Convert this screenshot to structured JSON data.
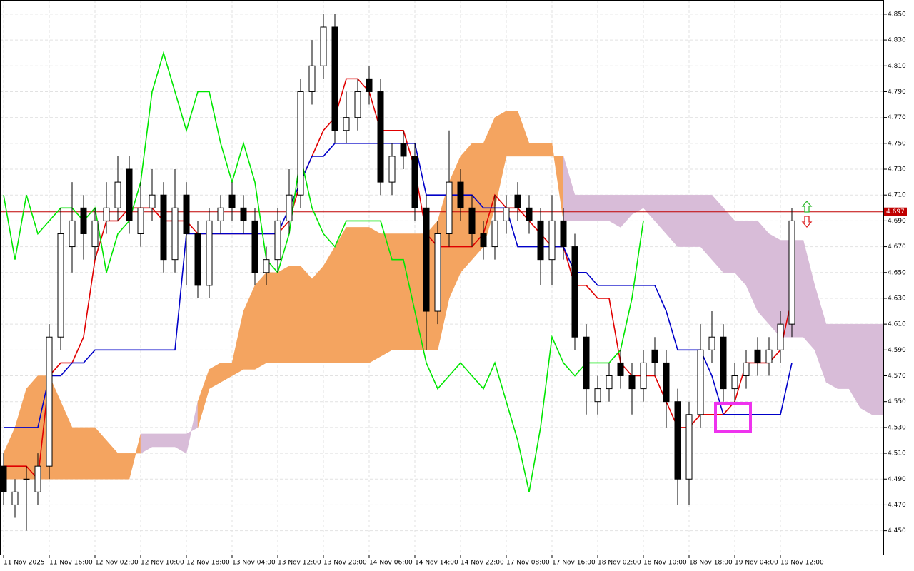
{
  "chart_data": {
    "type": "candlestick",
    "ylim": [
      4.431,
      4.861
    ],
    "yticks": [
      {
        "value": 4.45,
        "label": "4.450"
      },
      {
        "value": 4.47,
        "label": "4.470"
      },
      {
        "value": 4.49,
        "label": "4.490"
      },
      {
        "value": 4.51,
        "label": "4.510"
      },
      {
        "value": 4.53,
        "label": "4.530"
      },
      {
        "value": 4.55,
        "label": "4.550"
      },
      {
        "value": 4.57,
        "label": "4.570"
      },
      {
        "value": 4.59,
        "label": "4.590"
      },
      {
        "value": 4.61,
        "label": "4.610"
      },
      {
        "value": 4.63,
        "label": "4.630"
      },
      {
        "value": 4.65,
        "label": "4.650"
      },
      {
        "value": 4.67,
        "label": "4.670"
      },
      {
        "value": 4.69,
        "label": "4.690"
      },
      {
        "value": 4.71,
        "label": "4.710"
      },
      {
        "value": 4.73,
        "label": "4.730"
      },
      {
        "value": 4.75,
        "label": "4.750"
      },
      {
        "value": 4.77,
        "label": "4.770"
      },
      {
        "value": 4.79,
        "label": "4.790"
      },
      {
        "value": 4.81,
        "label": "4.810"
      },
      {
        "value": 4.83,
        "label": "4.830"
      },
      {
        "value": 4.85,
        "label": "4.850"
      }
    ],
    "grid": true,
    "categories": [
      "11 Nov 2025",
      null,
      null,
      null,
      "11 Nov 16:00",
      null,
      null,
      null,
      "12 Nov 02:00",
      null,
      null,
      null,
      "12 Nov 10:00",
      null,
      null,
      null,
      "12 Nov 18:00",
      null,
      null,
      null,
      "13 Nov 04:00",
      null,
      null,
      null,
      "13 Nov 12:00",
      null,
      null,
      null,
      "13 Nov 20:00",
      null,
      null,
      null,
      "14 Nov 06:00",
      null,
      null,
      null,
      "14 Nov 14:00",
      null,
      null,
      null,
      "14 Nov 22:00",
      null,
      null,
      null,
      "17 Nov 08:00",
      null,
      null,
      null,
      "17 Nov 16:00",
      null,
      null,
      null,
      "18 Nov 02:00",
      null,
      null,
      null,
      "18 Nov 10:00",
      null,
      null,
      null,
      "18 Nov 18:00",
      null,
      null,
      null,
      "19 Nov 04:00",
      null,
      null,
      null,
      "19 Nov 12:00",
      null,
      null,
      null,
      null,
      null,
      null,
      null,
      null,
      null
    ],
    "open": [
      4.5,
      4.47,
      4.49,
      4.48,
      4.5,
      4.6,
      4.67,
      4.7,
      4.67,
      4.69,
      4.7,
      4.73,
      4.68,
      4.7,
      4.71,
      4.66,
      4.71,
      4.68,
      4.64,
      4.69,
      4.71,
      4.7,
      4.69,
      4.65,
      4.66,
      4.69,
      4.71,
      4.79,
      4.81,
      4.84,
      4.76,
      4.77,
      4.8,
      4.79,
      4.72,
      4.75,
      4.74,
      4.7,
      4.62,
      4.68,
      4.72,
      4.7,
      4.68,
      4.67,
      4.69,
      4.71,
      4.7,
      4.69,
      4.66,
      4.69,
      4.67,
      4.6,
      4.55,
      4.56,
      4.58,
      4.57,
      4.56,
      4.59,
      4.58,
      4.55,
      4.49,
      4.54,
      4.59,
      4.6,
      4.56,
      4.57,
      4.59,
      4.58,
      4.59,
      4.61,
      null,
      null,
      null,
      null,
      null,
      null,
      null,
      null
    ],
    "high": [
      4.51,
      4.49,
      4.5,
      4.51,
      4.61,
      4.7,
      4.72,
      4.71,
      4.7,
      4.72,
      4.74,
      4.74,
      4.72,
      4.73,
      4.72,
      4.73,
      4.72,
      4.69,
      4.7,
      4.71,
      4.72,
      4.71,
      4.7,
      4.67,
      4.7,
      4.73,
      4.8,
      4.83,
      4.85,
      4.85,
      4.79,
      4.8,
      4.81,
      4.8,
      4.75,
      4.76,
      4.75,
      4.71,
      4.69,
      4.76,
      4.73,
      4.71,
      4.69,
      4.71,
      4.71,
      4.72,
      4.71,
      4.7,
      4.71,
      4.7,
      4.68,
      4.61,
      4.57,
      4.58,
      4.59,
      4.58,
      4.59,
      4.6,
      4.59,
      4.56,
      4.55,
      4.61,
      4.62,
      4.61,
      4.58,
      4.59,
      4.6,
      4.6,
      4.62,
      4.7,
      null,
      null,
      null,
      null,
      null,
      null,
      null,
      null
    ],
    "low": [
      4.47,
      4.46,
      4.45,
      4.47,
      4.49,
      4.59,
      4.65,
      4.66,
      4.66,
      4.68,
      4.69,
      4.68,
      4.67,
      4.69,
      4.65,
      4.65,
      4.64,
      4.63,
      4.63,
      4.68,
      4.69,
      4.68,
      4.64,
      4.64,
      4.65,
      4.68,
      4.7,
      4.78,
      4.8,
      4.75,
      4.75,
      4.76,
      4.78,
      4.71,
      4.71,
      4.73,
      4.69,
      4.59,
      4.61,
      4.67,
      4.69,
      4.67,
      4.66,
      4.66,
      4.68,
      4.69,
      4.68,
      4.64,
      4.64,
      4.66,
      4.59,
      4.54,
      4.54,
      4.55,
      4.56,
      4.54,
      4.55,
      4.57,
      4.53,
      4.47,
      4.47,
      4.53,
      4.58,
      4.55,
      4.55,
      4.56,
      4.57,
      4.57,
      4.58,
      4.6,
      null,
      null,
      null,
      null,
      null,
      null,
      null,
      null
    ],
    "close": [
      4.48,
      4.48,
      4.49,
      4.5,
      4.6,
      4.68,
      4.69,
      4.68,
      4.69,
      4.7,
      4.72,
      4.69,
      4.7,
      4.71,
      4.66,
      4.7,
      4.68,
      4.64,
      4.69,
      4.7,
      4.7,
      4.69,
      4.65,
      4.66,
      4.69,
      4.71,
      4.79,
      4.81,
      4.84,
      4.76,
      4.77,
      4.79,
      4.79,
      4.72,
      4.74,
      4.74,
      4.7,
      4.62,
      4.68,
      4.72,
      4.7,
      4.68,
      4.67,
      4.69,
      4.7,
      4.7,
      4.69,
      4.66,
      4.69,
      4.67,
      4.6,
      4.56,
      4.56,
      4.57,
      4.57,
      4.56,
      4.58,
      4.58,
      4.55,
      4.49,
      4.54,
      4.59,
      4.6,
      4.56,
      4.57,
      4.58,
      4.58,
      4.59,
      4.61,
      4.69,
      null,
      null,
      null,
      null,
      null,
      null,
      null,
      null
    ],
    "up_color": "#ffffff",
    "down_color": "#000000",
    "lines": [
      {
        "color": "#e00000",
        "values": [
          4.5,
          4.5,
          4.5,
          4.49,
          4.57,
          4.58,
          4.58,
          4.6,
          4.66,
          4.69,
          4.69,
          4.7,
          4.7,
          4.7,
          4.69,
          4.69,
          4.69,
          4.68,
          4.68,
          4.68,
          4.68,
          4.68,
          4.68,
          4.68,
          4.68,
          4.69,
          4.72,
          4.74,
          4.76,
          4.77,
          4.8,
          4.8,
          4.79,
          4.76,
          4.76,
          4.76,
          4.73,
          4.68,
          4.67,
          4.67,
          4.67,
          4.67,
          4.68,
          4.71,
          4.7,
          4.7,
          4.69,
          4.68,
          4.67,
          4.67,
          4.64,
          4.64,
          4.63,
          4.63,
          4.58,
          4.57,
          4.57,
          4.57,
          4.55,
          4.53,
          4.53,
          4.54,
          4.54,
          4.54,
          4.55,
          4.58,
          4.58,
          4.58,
          4.59,
          4.63,
          null,
          null,
          null,
          null,
          null,
          null,
          null,
          null
        ]
      },
      {
        "color": "#0000c8",
        "values": [
          4.53,
          4.53,
          4.53,
          4.53,
          4.57,
          4.57,
          4.58,
          4.58,
          4.59,
          4.59,
          4.59,
          4.59,
          4.59,
          4.59,
          4.59,
          4.59,
          4.68,
          4.68,
          4.68,
          4.68,
          4.68,
          4.68,
          4.68,
          4.68,
          4.68,
          4.7,
          4.72,
          4.74,
          4.74,
          4.75,
          4.75,
          4.75,
          4.75,
          4.75,
          4.75,
          4.75,
          4.75,
          4.71,
          4.71,
          4.71,
          4.71,
          4.71,
          4.7,
          4.7,
          4.7,
          4.67,
          4.67,
          4.67,
          4.67,
          4.67,
          4.65,
          4.65,
          4.64,
          4.64,
          4.64,
          4.64,
          4.64,
          4.64,
          4.62,
          4.59,
          4.59,
          4.59,
          4.57,
          4.54,
          4.54,
          4.54,
          4.54,
          4.54,
          4.54,
          4.58,
          null,
          null,
          null,
          null,
          null,
          null,
          null,
          null
        ]
      },
      {
        "color": "#00e600",
        "values": [
          4.71,
          4.66,
          4.71,
          4.68,
          4.69,
          4.7,
          4.7,
          4.69,
          4.7,
          4.65,
          4.68,
          4.69,
          4.72,
          4.79,
          4.82,
          4.79,
          4.76,
          4.79,
          4.79,
          4.75,
          4.72,
          4.75,
          4.72,
          4.66,
          4.65,
          4.68,
          4.74,
          4.7,
          4.68,
          4.67,
          4.69,
          4.69,
          4.69,
          4.69,
          4.66,
          4.66,
          4.62,
          4.58,
          4.56,
          4.57,
          4.58,
          4.57,
          4.56,
          4.58,
          4.55,
          4.52,
          4.48,
          4.53,
          4.6,
          4.58,
          4.57,
          4.58,
          4.58,
          4.58,
          4.59,
          4.63,
          4.69,
          null,
          null,
          null,
          null,
          null,
          null,
          null,
          null,
          null,
          null,
          null,
          null,
          null,
          null,
          null,
          null,
          null,
          null,
          null,
          null,
          null
        ]
      }
    ],
    "cloud": {
      "up_color": "#f4a460",
      "down_color": "#d8bcd8",
      "span_a": [
        4.51,
        4.53,
        4.56,
        4.57,
        4.57,
        4.55,
        4.53,
        4.53,
        4.53,
        4.52,
        4.51,
        4.51,
        4.51,
        4.515,
        4.515,
        4.515,
        4.51,
        4.55,
        4.575,
        4.58,
        4.58,
        4.62,
        4.64,
        4.65,
        4.65,
        4.655,
        4.655,
        4.645,
        4.655,
        4.67,
        4.685,
        4.685,
        4.685,
        4.68,
        4.68,
        4.68,
        4.68,
        4.68,
        4.69,
        4.72,
        4.74,
        4.75,
        4.75,
        4.77,
        4.775,
        4.775,
        4.75,
        4.75,
        4.75,
        4.69,
        4.69,
        4.69,
        4.69,
        4.69,
        4.685,
        4.695,
        4.7,
        4.69,
        4.68,
        4.67,
        4.67,
        4.67,
        4.66,
        4.65,
        4.65,
        4.64,
        4.62,
        4.61,
        4.6,
        4.6,
        4.6,
        4.59,
        4.565,
        4.56,
        4.56,
        4.545,
        4.54,
        4.54
      ],
      "span_b": [
        4.49,
        4.49,
        4.49,
        4.49,
        4.49,
        4.49,
        4.49,
        4.49,
        4.49,
        4.49,
        4.49,
        4.49,
        4.525,
        4.525,
        4.525,
        4.525,
        4.525,
        4.53,
        4.56,
        4.565,
        4.57,
        4.575,
        4.575,
        4.58,
        4.58,
        4.58,
        4.58,
        4.58,
        4.58,
        4.58,
        4.58,
        4.58,
        4.58,
        4.585,
        4.59,
        4.59,
        4.59,
        4.59,
        4.59,
        4.63,
        4.65,
        4.66,
        4.67,
        4.7,
        4.74,
        4.74,
        4.74,
        4.74,
        4.74,
        4.74,
        4.71,
        4.71,
        4.71,
        4.71,
        4.71,
        4.71,
        4.71,
        4.71,
        4.71,
        4.71,
        4.71,
        4.71,
        4.71,
        4.7,
        4.69,
        4.69,
        4.69,
        4.68,
        4.675,
        4.675,
        4.675,
        4.64,
        4.61,
        4.61,
        4.61,
        4.61,
        4.61,
        4.61
      ]
    },
    "current_price": 4.697,
    "current_price_color": "#c00000"
  }
}
